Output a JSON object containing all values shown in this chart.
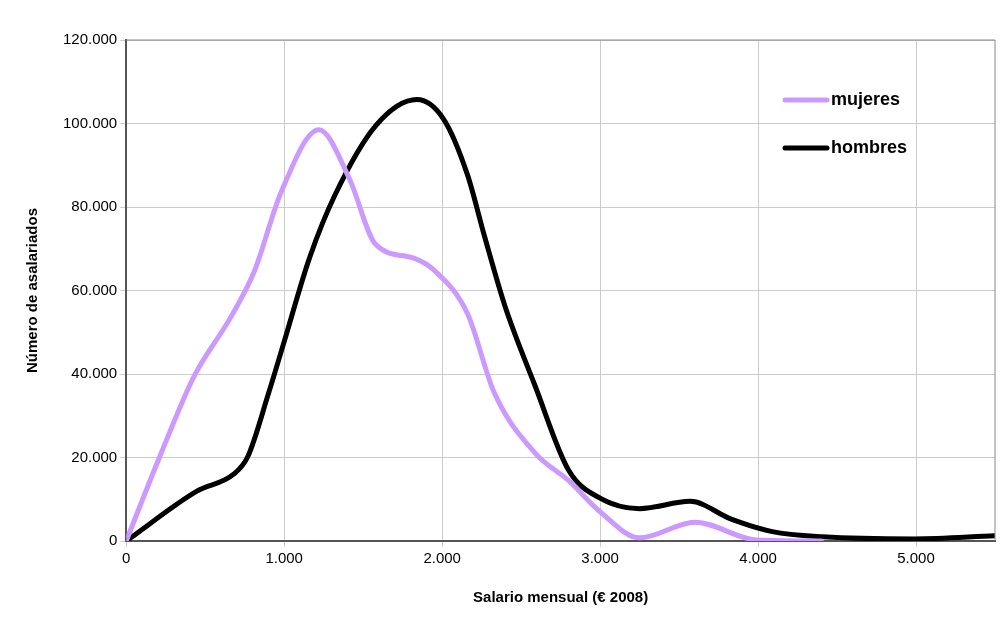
{
  "chart_data": {
    "type": "line",
    "xlabel": "Salario mensual (€ 2008)",
    "ylabel": "Número de asalariados",
    "xlim": [
      0,
      5500
    ],
    "xticks": [
      {
        "value": 0,
        "label": "0"
      },
      {
        "value": 1000,
        "label": "1.000"
      },
      {
        "value": 2000,
        "label": "2.000"
      },
      {
        "value": 3000,
        "label": "3.000"
      },
      {
        "value": 4000,
        "label": "4.000"
      },
      {
        "value": 5000,
        "label": "5.000"
      }
    ],
    "ylim": [
      0,
      120000
    ],
    "yticks": [
      {
        "value": 0,
        "label": "0"
      },
      {
        "value": 20000,
        "label": "20.000"
      },
      {
        "value": 40000,
        "label": "40.000"
      },
      {
        "value": 60000,
        "label": "60.000"
      },
      {
        "value": 80000,
        "label": "80.000"
      },
      {
        "value": 100000,
        "label": "100.000"
      },
      {
        "value": 120000,
        "label": "120.000"
      }
    ],
    "grid": true,
    "legend": "top right",
    "marker": "none",
    "line_style": "solid",
    "series": [
      {
        "name": "mujeres",
        "color": "#cc99ff",
        "x": [
          0,
          210,
          430,
          660,
          810,
          980,
          1220,
          1410,
          1580,
          1820,
          1960,
          2160,
          2330,
          2590,
          2800,
          3000,
          3250,
          3600,
          3990,
          4400
        ],
        "values": [
          0,
          20000,
          39500,
          53500,
          64500,
          83500,
          98500,
          87000,
          71000,
          67750,
          64500,
          54500,
          35500,
          21000,
          14500,
          7000,
          750,
          4500,
          250,
          0
        ]
      },
      {
        "name": "hombres",
        "color": "#000000",
        "x": [
          0,
          450,
          680,
          770,
          900,
          1000,
          1160,
          1320,
          1580,
          1840,
          2010,
          2160,
          2270,
          2400,
          2590,
          2800,
          3000,
          3250,
          3570,
          3830,
          4090,
          4410,
          4990,
          5500
        ],
        "values": [
          0,
          12000,
          16000,
          20250,
          35250,
          47750,
          67750,
          82750,
          99500,
          105750,
          101000,
          87750,
          72750,
          56000,
          37000,
          17000,
          10250,
          7750,
          9500,
          5250,
          2250,
          1000,
          500,
          1250
        ]
      }
    ]
  }
}
